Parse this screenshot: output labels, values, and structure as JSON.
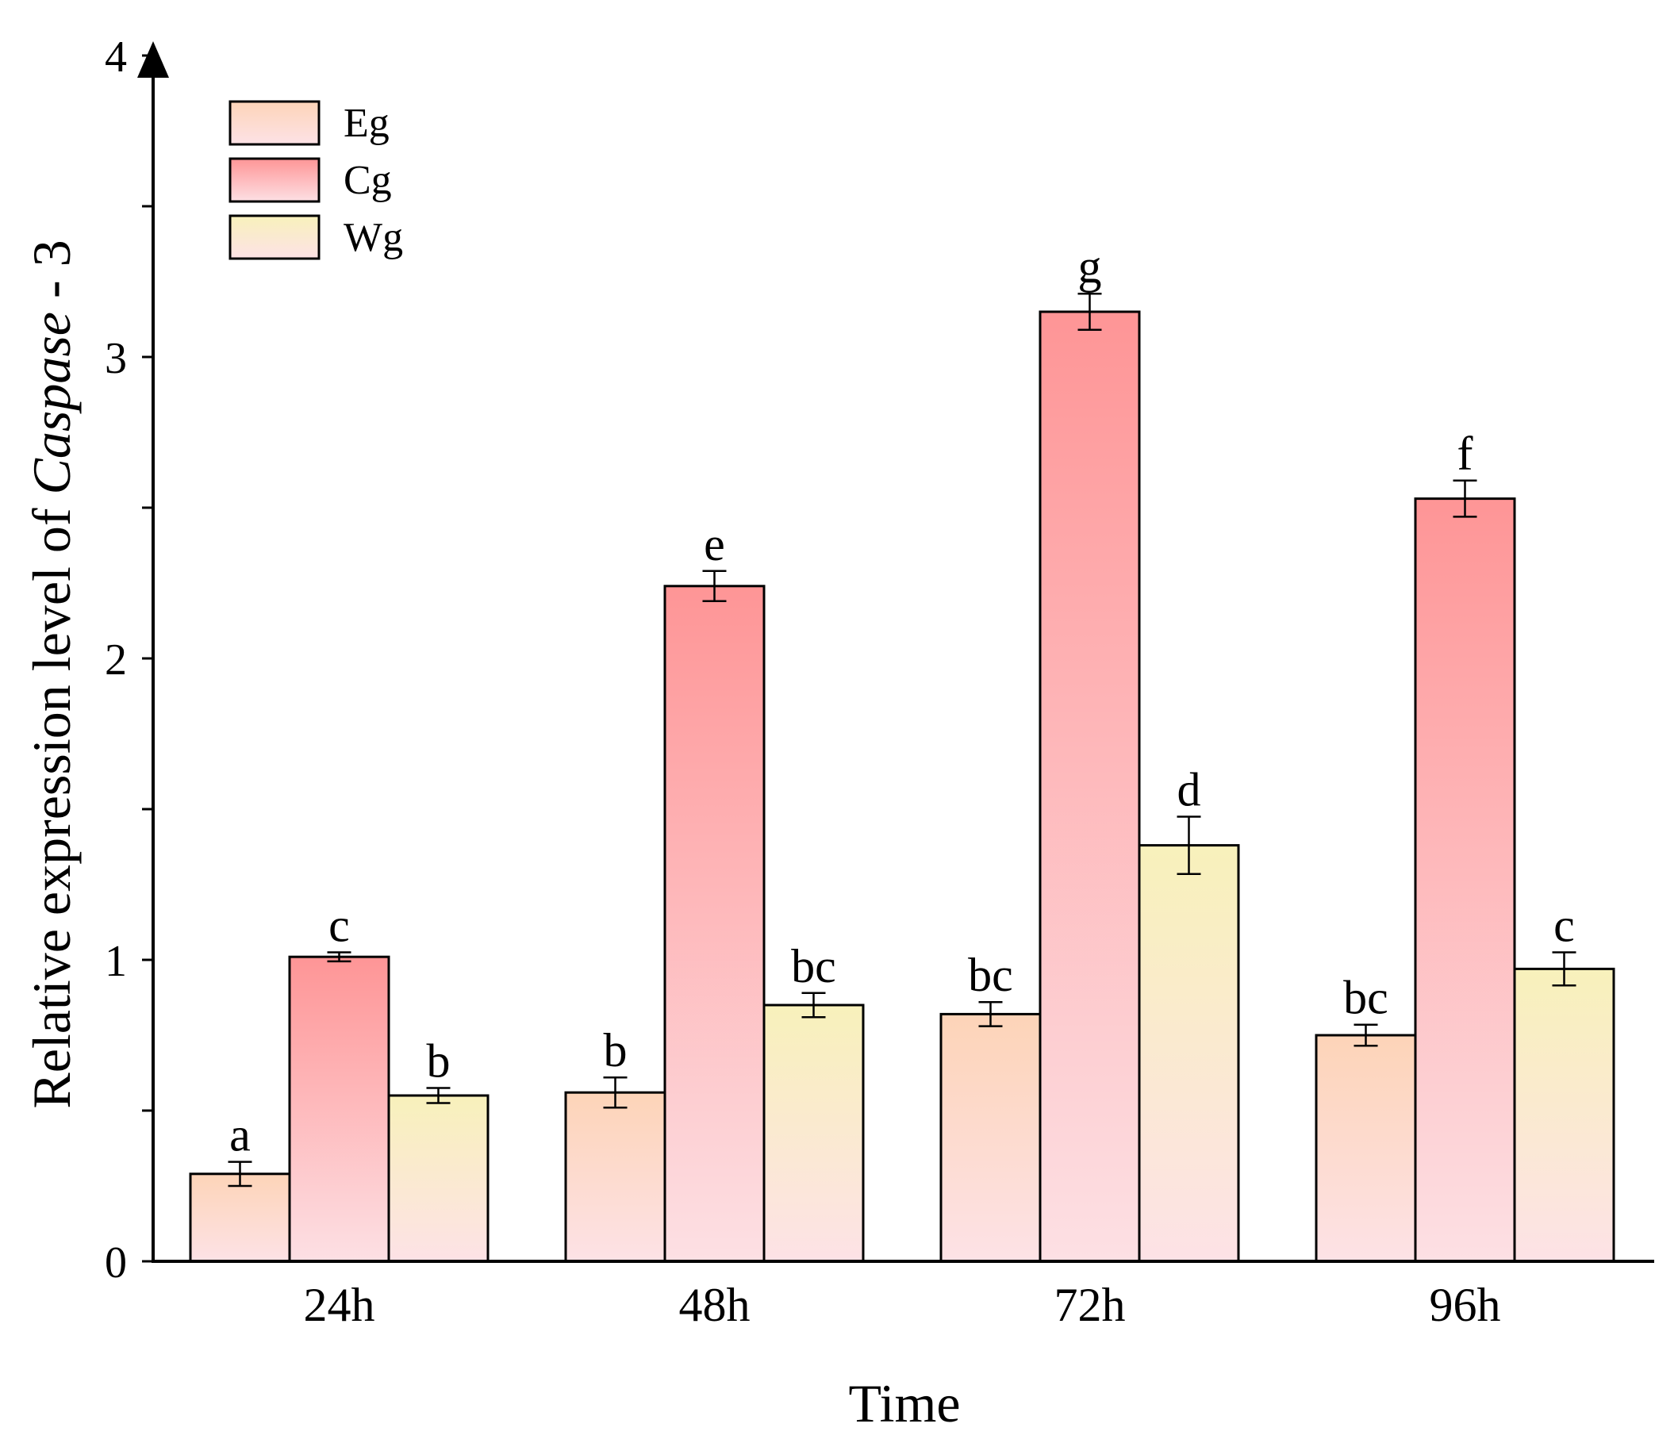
{
  "chart_data": {
    "type": "bar",
    "title": "",
    "xlabel": "Time",
    "ylabel_prefix": "Relative expression level of ",
    "ylabel_gene": "Caspase",
    "ylabel_suffix": " - 3",
    "ylim": [
      0,
      4
    ],
    "y_ticks": [
      0,
      1,
      2,
      3,
      4
    ],
    "y_tick_labels": [
      "0",
      "1",
      "2",
      "3",
      "4"
    ],
    "categories": [
      "24h",
      "48h",
      "72h",
      "96h"
    ],
    "legend_position": "top-left",
    "series": [
      {
        "name": "Eg",
        "values": [
          0.29,
          0.56,
          0.82,
          0.75
        ],
        "errors": [
          0.04,
          0.05,
          0.04,
          0.035
        ],
        "letters": [
          "a",
          "b",
          "bc",
          "bc"
        ],
        "color_top": "#fdd4b8",
        "color_bottom": "#fde2e6"
      },
      {
        "name": "Cg",
        "values": [
          1.01,
          2.24,
          3.15,
          2.53
        ],
        "errors": [
          0.015,
          0.05,
          0.06,
          0.06
        ],
        "letters": [
          "c",
          "e",
          "g",
          "f"
        ],
        "color_top": "#fe9596",
        "color_bottom": "#fde0e4"
      },
      {
        "name": "Wg",
        "values": [
          0.55,
          0.85,
          1.38,
          0.97
        ],
        "errors": [
          0.025,
          0.04,
          0.095,
          0.055
        ],
        "letters": [
          "b",
          "bc",
          "d",
          "c"
        ],
        "color_top": "#f8f1bb",
        "color_bottom": "#fde2e6"
      }
    ]
  }
}
